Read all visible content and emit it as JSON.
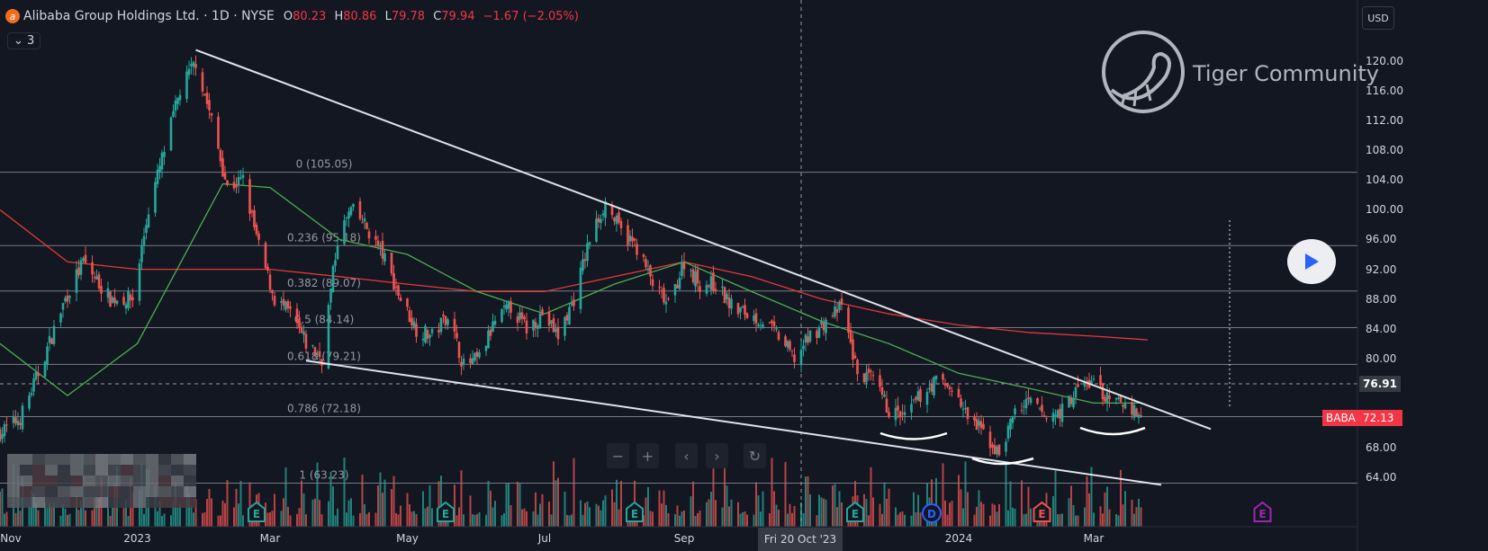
{
  "header": {
    "title": "Alibaba Group Holdings Ltd. · 1D · NYSE",
    "logo_letter": "a",
    "ohlc": [
      {
        "key": "O",
        "value": "80.23"
      },
      {
        "key": "H",
        "value": "80.86"
      },
      {
        "key": "L",
        "value": "79.78"
      },
      {
        "key": "C",
        "value": "79.94"
      },
      {
        "key": "",
        "value": "−1.67 (−2.05%)"
      }
    ],
    "indicators_toggle": "⌄ 3"
  },
  "currency_button": "USD",
  "watermark": "Tiger Community",
  "colors": {
    "up": "#26a69a",
    "down": "#ef5350",
    "bg": "#131722",
    "ma_fast": "#4caf50",
    "ma_slow": "#e53935",
    "fib": "#b2b5be",
    "trend": "#e0e3eb"
  },
  "chart_data": {
    "type": "candlestick",
    "symbol": "BABA",
    "last_price": "72.13",
    "crosshair_price": "76.91",
    "crosshair_date": "Fri 20 Oct '23",
    "ylim": [
      60,
      124
    ],
    "y_ticks": [
      "120.00",
      "116.00",
      "112.00",
      "108.00",
      "104.00",
      "100.00",
      "96.00",
      "92.00",
      "88.00",
      "84.00",
      "80.00",
      "68.00",
      "64.00"
    ],
    "x_ticks": [
      {
        "label": "Nov",
        "date": "2022-11-01"
      },
      {
        "label": "2023",
        "date": "2023-01-01"
      },
      {
        "label": "Mar",
        "date": "2023-03-01"
      },
      {
        "label": "May",
        "date": "2023-05-01"
      },
      {
        "label": "Jul",
        "date": "2023-07-01"
      },
      {
        "label": "Sep",
        "date": "2023-09-01"
      },
      {
        "label": "2024",
        "date": "2024-01-01"
      },
      {
        "label": "Mar",
        "date": "2024-03-01"
      }
    ],
    "price_path": [
      [
        "2022-11-01",
        70
      ],
      [
        "2022-11-10",
        72
      ],
      [
        "2022-11-18",
        78
      ],
      [
        "2022-11-30",
        88
      ],
      [
        "2022-12-08",
        93
      ],
      [
        "2022-12-20",
        88
      ],
      [
        "2022-12-30",
        88
      ],
      [
        "2023-01-06",
        100
      ],
      [
        "2023-01-13",
        108
      ],
      [
        "2023-01-20",
        116
      ],
      [
        "2023-01-27",
        120
      ],
      [
        "2023-02-03",
        112
      ],
      [
        "2023-02-10",
        103
      ],
      [
        "2023-02-17",
        104
      ],
      [
        "2023-02-24",
        95
      ],
      [
        "2023-03-03",
        88
      ],
      [
        "2023-03-10",
        86
      ],
      [
        "2023-03-17",
        82
      ],
      [
        "2023-03-24",
        80
      ],
      [
        "2023-03-31",
        96
      ],
      [
        "2023-04-06",
        100
      ],
      [
        "2023-04-12",
        98
      ],
      [
        "2023-04-20",
        94
      ],
      [
        "2023-04-28",
        88
      ],
      [
        "2023-05-05",
        84
      ],
      [
        "2023-05-12",
        83
      ],
      [
        "2023-05-19",
        86
      ],
      [
        "2023-05-26",
        79
      ],
      [
        "2023-06-02",
        80
      ],
      [
        "2023-06-09",
        85
      ],
      [
        "2023-06-16",
        87
      ],
      [
        "2023-06-23",
        84
      ],
      [
        "2023-06-30",
        86
      ],
      [
        "2023-07-07",
        83
      ],
      [
        "2023-07-14",
        88
      ],
      [
        "2023-07-21",
        96
      ],
      [
        "2023-07-28",
        101
      ],
      [
        "2023-08-04",
        97
      ],
      [
        "2023-08-11",
        95
      ],
      [
        "2023-08-18",
        90
      ],
      [
        "2023-08-25",
        87
      ],
      [
        "2023-09-01",
        93
      ],
      [
        "2023-09-08",
        90
      ],
      [
        "2023-09-15",
        90
      ],
      [
        "2023-09-22",
        87
      ],
      [
        "2023-09-29",
        86
      ],
      [
        "2023-10-06",
        85
      ],
      [
        "2023-10-13",
        83
      ],
      [
        "2023-10-20",
        80
      ],
      [
        "2023-10-27",
        83
      ],
      [
        "2023-11-03",
        85
      ],
      [
        "2023-11-10",
        87
      ],
      [
        "2023-11-17",
        78
      ],
      [
        "2023-11-24",
        77
      ],
      [
        "2023-12-01",
        73
      ],
      [
        "2023-12-08",
        72
      ],
      [
        "2023-12-15",
        75
      ],
      [
        "2023-12-22",
        77
      ],
      [
        "2023-12-29",
        76
      ],
      [
        "2024-01-05",
        72
      ],
      [
        "2024-01-12",
        70
      ],
      [
        "2024-01-19",
        67
      ],
      [
        "2024-01-26",
        73
      ],
      [
        "2024-02-02",
        74
      ],
      [
        "2024-02-09",
        72
      ],
      [
        "2024-02-16",
        73
      ],
      [
        "2024-02-23",
        76
      ],
      [
        "2024-03-01",
        77
      ],
      [
        "2024-03-08",
        74
      ],
      [
        "2024-03-15",
        74
      ],
      [
        "2024-03-22",
        72.13
      ]
    ],
    "ma_fast": [
      [
        "2022-11-01",
        82
      ],
      [
        "2022-12-01",
        75
      ],
      [
        "2023-01-01",
        82
      ],
      [
        "2023-02-08",
        103.5
      ],
      [
        "2023-03-01",
        103
      ],
      [
        "2023-04-01",
        96
      ],
      [
        "2023-05-01",
        94
      ],
      [
        "2023-06-01",
        89
      ],
      [
        "2023-07-01",
        86
      ],
      [
        "2023-08-01",
        90
      ],
      [
        "2023-09-01",
        93
      ],
      [
        "2023-10-01",
        89
      ],
      [
        "2023-11-01",
        85
      ],
      [
        "2023-12-01",
        82
      ],
      [
        "2024-01-01",
        78
      ],
      [
        "2024-02-01",
        76
      ],
      [
        "2024-03-01",
        74
      ],
      [
        "2024-03-22",
        74
      ]
    ],
    "ma_slow": [
      [
        "2022-11-01",
        100
      ],
      [
        "2022-12-01",
        93
      ],
      [
        "2023-01-01",
        92
      ],
      [
        "2023-02-01",
        92
      ],
      [
        "2023-03-01",
        92
      ],
      [
        "2023-04-01",
        91
      ],
      [
        "2023-05-01",
        90
      ],
      [
        "2023-06-01",
        89
      ],
      [
        "2023-07-01",
        89
      ],
      [
        "2023-08-01",
        91
      ],
      [
        "2023-09-01",
        93
      ],
      [
        "2023-10-01",
        91
      ],
      [
        "2023-11-01",
        88
      ],
      [
        "2023-12-01",
        86
      ],
      [
        "2024-01-01",
        84.5
      ],
      [
        "2024-02-01",
        83.5
      ],
      [
        "2024-03-01",
        83
      ],
      [
        "2024-03-25",
        82.5
      ]
    ],
    "fib_levels": [
      {
        "label": "0 (105.05)",
        "price": 105.05
      },
      {
        "label": "0.236 (95.18)",
        "price": 95.18
      },
      {
        "label": "0.382 (89.07)",
        "price": 89.07
      },
      {
        "label": "0.5 (84.14)",
        "price": 84.14
      },
      {
        "label": "0.618 (79.21)",
        "price": 79.21
      },
      {
        "label": "0.786 (72.18)",
        "price": 72.18
      },
      {
        "label": "1 (63.23)",
        "price": 63.23
      }
    ],
    "trendlines": [
      {
        "from": [
          "2023-01-27",
          121.5
        ],
        "to": [
          "2024-04-22",
          70.5
        ]
      },
      {
        "from": [
          "2023-03-17",
          79.7
        ],
        "to": [
          "2024-03-31",
          63
        ]
      }
    ],
    "events": [
      {
        "type": "E",
        "date": "2023-02-23",
        "color": "#26a69a"
      },
      {
        "type": "E",
        "date": "2023-05-18",
        "color": "#26a69a"
      },
      {
        "type": "E",
        "date": "2023-08-10",
        "color": "#26a69a"
      },
      {
        "type": "E",
        "date": "2023-11-16",
        "color": "#26a69a"
      },
      {
        "type": "D",
        "date": "2023-12-20",
        "color": "#2962ff"
      },
      {
        "type": "E",
        "date": "2024-02-07",
        "color": "#ef5350"
      },
      {
        "type": "E",
        "date": "2024-05-15",
        "color": "#9c27b0"
      }
    ]
  },
  "controls": {
    "zoom_out": "−",
    "zoom_in": "+",
    "scroll_left": "‹",
    "scroll_right": "›",
    "reset": "↻"
  }
}
